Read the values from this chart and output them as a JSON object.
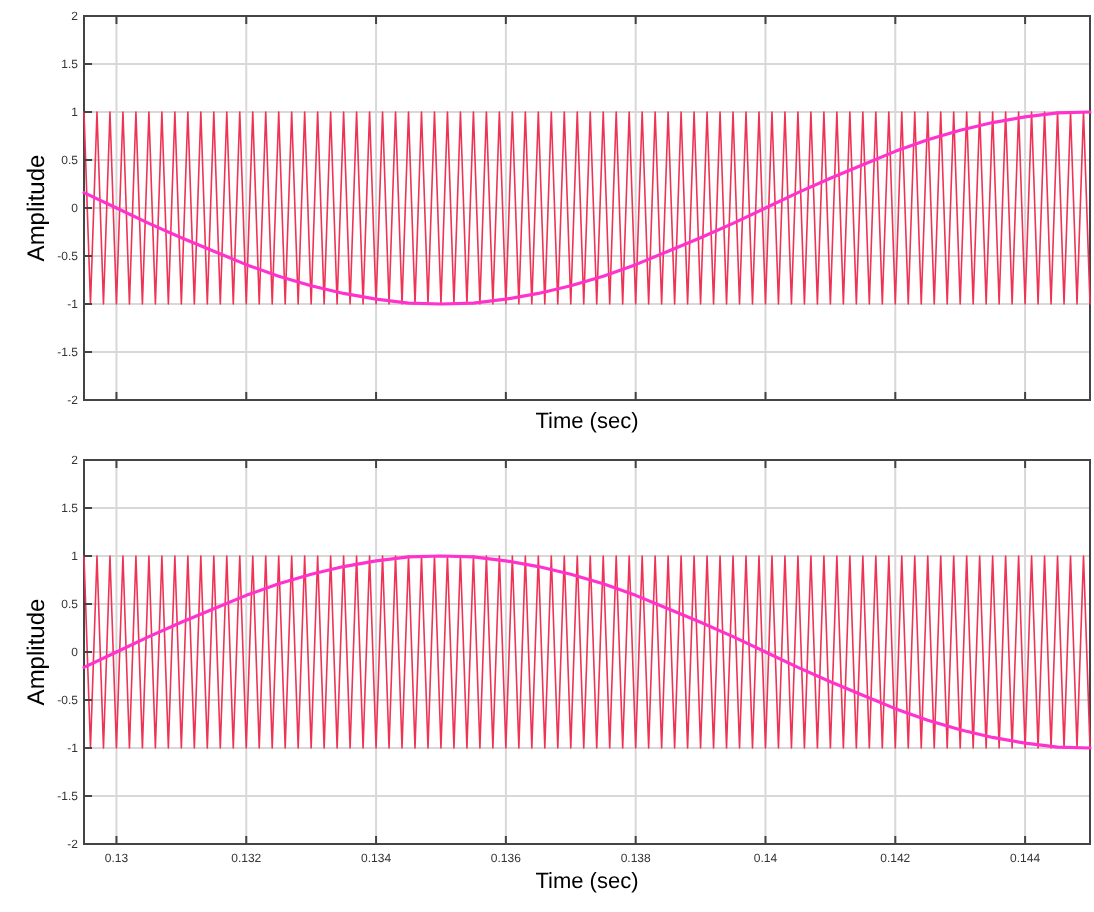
{
  "chart_data": [
    {
      "type": "line",
      "xlabel": "Time (sec)",
      "ylabel": "Amplitude",
      "xlim": [
        0.1295,
        0.145
      ],
      "xticks": [
        0.13,
        0.132,
        0.134,
        0.136,
        0.138,
        0.14,
        0.142,
        0.144
      ],
      "ylim": [
        -2,
        2
      ],
      "yticks": [
        -2,
        -1.5,
        -1,
        -0.5,
        0,
        0.5,
        1,
        1.5,
        2
      ],
      "grid": true,
      "tick_labels": "y",
      "x": [
        0.1295,
        0.1296,
        0.1297,
        0.1298,
        0.1299,
        0.13,
        0.1301,
        0.1302,
        0.1303,
        0.1304,
        0.1305,
        0.1306,
        0.1307,
        0.1308,
        0.1309,
        0.131,
        0.1311,
        0.1312,
        0.1313,
        0.1314,
        0.1315,
        0.1316,
        0.1317,
        0.1318,
        0.1319,
        0.132,
        0.1321,
        0.1322,
        0.1323,
        0.1324,
        0.1325,
        0.1326,
        0.1327,
        0.1328,
        0.1329,
        0.133,
        0.1331,
        0.1332,
        0.1333,
        0.1334,
        0.1335,
        0.1336,
        0.1337,
        0.1338,
        0.1339,
        0.134,
        0.1341,
        0.1342,
        0.1343,
        0.1344,
        0.1345,
        0.1346,
        0.1347,
        0.1348,
        0.1349,
        0.135,
        0.1351,
        0.1352,
        0.1353,
        0.1354,
        0.1355,
        0.1356,
        0.1357,
        0.1358,
        0.1359,
        0.136,
        0.1361,
        0.1362,
        0.1363,
        0.1364,
        0.1365,
        0.1366,
        0.1367,
        0.1368,
        0.1369,
        0.137,
        0.1371,
        0.1372,
        0.1373,
        0.1374,
        0.1375,
        0.1376,
        0.1377,
        0.1378,
        0.1379,
        0.138,
        0.1381,
        0.1382,
        0.1383,
        0.1384,
        0.1385,
        0.1386,
        0.1387,
        0.1388,
        0.1389,
        0.139,
        0.1391,
        0.1392,
        0.1393,
        0.1394,
        0.1395,
        0.1396,
        0.1397,
        0.1398,
        0.1399,
        0.14,
        0.1401,
        0.1402,
        0.1403,
        0.1404,
        0.1405,
        0.1406,
        0.1407,
        0.1408,
        0.1409,
        0.141,
        0.1411,
        0.1412,
        0.1413,
        0.1414,
        0.1415,
        0.1416,
        0.1417,
        0.1418,
        0.1419,
        0.142,
        0.1421,
        0.1422,
        0.1423,
        0.1424,
        0.1425,
        0.1426,
        0.1427,
        0.1428,
        0.1429,
        0.143,
        0.1431,
        0.1432,
        0.1433,
        0.1434,
        0.1435,
        0.1436,
        0.1437,
        0.1438,
        0.1439,
        0.144,
        0.1441,
        0.1442,
        0.1443,
        0.1444,
        0.1445,
        0.1446,
        0.1447,
        0.1448,
        0.1449,
        0.145
      ],
      "series": [
        {
          "color": "#ee3355",
          "values": [
            1,
            -1,
            1,
            -1,
            1,
            -1,
            1,
            -1,
            1,
            -1,
            1,
            -1,
            1,
            -1,
            1,
            -1,
            1,
            -1,
            1,
            -1,
            1,
            -1,
            1,
            -1,
            1,
            -1,
            1,
            -1,
            1,
            -1,
            1,
            -1,
            1,
            -1,
            1,
            -1,
            1,
            -1,
            1,
            -1,
            1,
            -1,
            1,
            -1,
            1,
            -1,
            1,
            -1,
            1,
            -1,
            1,
            -1,
            1,
            -1,
            1,
            -1,
            1,
            -1,
            1,
            -1,
            1,
            -1,
            1,
            -1,
            1,
            -1,
            1,
            -1,
            1,
            -1,
            1,
            -1,
            1,
            -1,
            1,
            -1,
            1,
            -1,
            1,
            -1,
            1,
            -1,
            1,
            -1,
            1,
            -1,
            1,
            -1,
            1,
            -1,
            1,
            -1,
            1,
            -1,
            1,
            -1,
            1,
            -1,
            1,
            -1,
            1,
            -1,
            1,
            -1,
            1,
            -1,
            1,
            -1,
            1,
            -1,
            1,
            -1,
            1,
            -1,
            1,
            -1,
            1,
            -1,
            1,
            -1,
            1,
            -1,
            1,
            -1,
            1,
            -1,
            1,
            -1,
            1,
            -1,
            1,
            -1,
            1,
            -1,
            1,
            -1,
            1,
            -1,
            1,
            -1,
            1,
            -1,
            1,
            -1,
            1,
            -1,
            1,
            -1,
            1,
            -1,
            1,
            -1,
            1,
            -1,
            1,
            -1
          ]
        },
        {
          "color": "#ff33cc",
          "x": [
            0.1295,
            0.13,
            0.1305,
            0.131,
            0.1315,
            0.132,
            0.1325,
            0.133,
            0.1335,
            0.134,
            0.1345,
            0.135,
            0.1355,
            0.136,
            0.1365,
            0.137,
            0.1375,
            0.138,
            0.1385,
            0.139,
            0.1395,
            0.14,
            0.1405,
            0.141,
            0.1415,
            0.142,
            0.1425,
            0.143,
            0.1435,
            0.144,
            0.1445,
            0.145
          ],
          "values": [
            0.16,
            0,
            -0.16,
            -0.31,
            -0.45,
            -0.59,
            -0.71,
            -0.81,
            -0.89,
            -0.95,
            -0.99,
            -1,
            -0.99,
            -0.95,
            -0.89,
            -0.81,
            -0.71,
            -0.59,
            -0.45,
            -0.31,
            -0.16,
            0,
            0.16,
            0.31,
            0.45,
            0.59,
            0.71,
            0.81,
            0.89,
            0.95,
            0.99,
            1
          ]
        }
      ]
    },
    {
      "type": "line",
      "xlabel": "Time (sec)",
      "ylabel": "Amplitude",
      "xlim": [
        0.1295,
        0.145
      ],
      "xticks": [
        0.13,
        0.132,
        0.134,
        0.136,
        0.138,
        0.14,
        0.142,
        0.144
      ],
      "ylim": [
        -2,
        2
      ],
      "yticks": [
        -2,
        -1.5,
        -1,
        -0.5,
        0,
        0.5,
        1,
        1.5,
        2
      ],
      "grid": true,
      "x": [
        0.1295,
        0.1296,
        0.1297,
        0.1298,
        0.1299,
        0.13,
        0.1301,
        0.1302,
        0.1303,
        0.1304,
        0.1305,
        0.1306,
        0.1307,
        0.1308,
        0.1309,
        0.131,
        0.1311,
        0.1312,
        0.1313,
        0.1314,
        0.1315,
        0.1316,
        0.1317,
        0.1318,
        0.1319,
        0.132,
        0.1321,
        0.1322,
        0.1323,
        0.1324,
        0.1325,
        0.1326,
        0.1327,
        0.1328,
        0.1329,
        0.133,
        0.1331,
        0.1332,
        0.1333,
        0.1334,
        0.1335,
        0.1336,
        0.1337,
        0.1338,
        0.1339,
        0.134,
        0.1341,
        0.1342,
        0.1343,
        0.1344,
        0.1345,
        0.1346,
        0.1347,
        0.1348,
        0.1349,
        0.135,
        0.1351,
        0.1352,
        0.1353,
        0.1354,
        0.1355,
        0.1356,
        0.1357,
        0.1358,
        0.1359,
        0.136,
        0.1361,
        0.1362,
        0.1363,
        0.1364,
        0.1365,
        0.1366,
        0.1367,
        0.1368,
        0.1369,
        0.137,
        0.1371,
        0.1372,
        0.1373,
        0.1374,
        0.1375,
        0.1376,
        0.1377,
        0.1378,
        0.1379,
        0.138,
        0.1381,
        0.1382,
        0.1383,
        0.1384,
        0.1385,
        0.1386,
        0.1387,
        0.1388,
        0.1389,
        0.139,
        0.1391,
        0.1392,
        0.1393,
        0.1394,
        0.1395,
        0.1396,
        0.1397,
        0.1398,
        0.1399,
        0.14,
        0.1401,
        0.1402,
        0.1403,
        0.1404,
        0.1405,
        0.1406,
        0.1407,
        0.1408,
        0.1409,
        0.141,
        0.1411,
        0.1412,
        0.1413,
        0.1414,
        0.1415,
        0.1416,
        0.1417,
        0.1418,
        0.1419,
        0.142,
        0.1421,
        0.1422,
        0.1423,
        0.1424,
        0.1425,
        0.1426,
        0.1427,
        0.1428,
        0.1429,
        0.143,
        0.1431,
        0.1432,
        0.1433,
        0.1434,
        0.1435,
        0.1436,
        0.1437,
        0.1438,
        0.1439,
        0.144,
        0.1441,
        0.1442,
        0.1443,
        0.1444,
        0.1445,
        0.1446,
        0.1447,
        0.1448,
        0.1449,
        0.145
      ],
      "series": [
        {
          "color": "#ee3355",
          "values": [
            1,
            -1,
            1,
            -1,
            1,
            -1,
            1,
            -1,
            1,
            -1,
            1,
            -1,
            1,
            -1,
            1,
            -1,
            1,
            -1,
            1,
            -1,
            1,
            -1,
            1,
            -1,
            1,
            -1,
            1,
            -1,
            1,
            -1,
            1,
            -1,
            1,
            -1,
            1,
            -1,
            1,
            -1,
            1,
            -1,
            1,
            -1,
            1,
            -1,
            1,
            -1,
            1,
            -1,
            1,
            -1,
            1,
            -1,
            1,
            -1,
            1,
            -1,
            1,
            -1,
            1,
            -1,
            1,
            -1,
            1,
            -1,
            1,
            -1,
            1,
            -1,
            1,
            -1,
            1,
            -1,
            1,
            -1,
            1,
            -1,
            1,
            -1,
            1,
            -1,
            1,
            -1,
            1,
            -1,
            1,
            -1,
            1,
            -1,
            1,
            -1,
            1,
            -1,
            1,
            -1,
            1,
            -1,
            1,
            -1,
            1,
            -1,
            1,
            -1,
            1,
            -1,
            1,
            -1,
            1,
            -1,
            1,
            -1,
            1,
            -1,
            1,
            -1,
            1,
            -1,
            1,
            -1,
            1,
            -1,
            1,
            -1,
            1,
            -1,
            1,
            -1,
            1,
            -1,
            1,
            -1,
            1,
            -1,
            1,
            -1,
            1,
            -1,
            1,
            -1,
            1,
            -1,
            1,
            -1,
            1,
            -1,
            1,
            -1,
            1,
            -1,
            1,
            -1,
            1,
            -1,
            1,
            -1,
            1,
            -1
          ]
        },
        {
          "color": "#ff33cc",
          "x": [
            0.1295,
            0.13,
            0.1305,
            0.131,
            0.1315,
            0.132,
            0.1325,
            0.133,
            0.1335,
            0.134,
            0.1345,
            0.135,
            0.1355,
            0.136,
            0.1365,
            0.137,
            0.1375,
            0.138,
            0.1385,
            0.139,
            0.1395,
            0.14,
            0.1405,
            0.141,
            0.1415,
            0.142,
            0.1425,
            0.143,
            0.1435,
            0.144,
            0.1445,
            0.145
          ],
          "values": [
            -0.16,
            0,
            0.16,
            0.31,
            0.45,
            0.59,
            0.71,
            0.81,
            0.89,
            0.95,
            0.99,
            1,
            0.99,
            0.95,
            0.89,
            0.81,
            0.71,
            0.59,
            0.45,
            0.31,
            0.16,
            0,
            -0.16,
            -0.31,
            -0.45,
            -0.59,
            -0.71,
            -0.81,
            -0.89,
            -0.95,
            -0.99,
            -1
          ]
        }
      ]
    }
  ]
}
